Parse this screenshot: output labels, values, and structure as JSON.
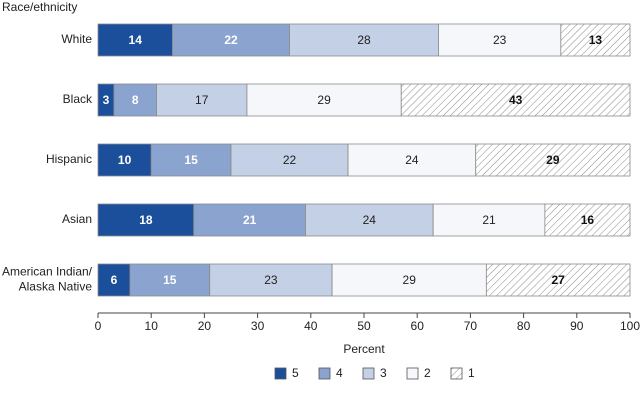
{
  "chart_data": {
    "type": "stacked-bar-horizontal",
    "y_label": "Race/ethnicity",
    "x_label": "Percent",
    "categories": [
      "White",
      "Black",
      "Hispanic",
      "Asian",
      "American Indian/\nAlaska Native"
    ],
    "series": [
      {
        "name": "5",
        "color": "#1b4f9c",
        "label_color": "#ffffff",
        "label_weight": "bold",
        "values": [
          14,
          3,
          10,
          18,
          6
        ]
      },
      {
        "name": "4",
        "color": "#8aa4cf",
        "label_color": "#ffffff",
        "label_weight": "bold",
        "values": [
          22,
          8,
          15,
          21,
          15
        ]
      },
      {
        "name": "3",
        "color": "#c4d0e5",
        "label_color": "#222222",
        "label_weight": "normal",
        "values": [
          28,
          17,
          22,
          24,
          23
        ]
      },
      {
        "name": "2",
        "color": "#f5f7fb",
        "label_color": "#222222",
        "label_weight": "normal",
        "values": [
          23,
          29,
          24,
          21,
          29
        ]
      },
      {
        "name": "1",
        "color": "#ffffff",
        "pattern": "hatch",
        "label_color": "#111111",
        "label_weight": "bold",
        "values": [
          13,
          43,
          29,
          16,
          27
        ]
      }
    ],
    "xlim": [
      0,
      100
    ],
    "xticks": [
      0,
      10,
      20,
      30,
      40,
      50,
      60,
      70,
      80,
      90,
      100
    ],
    "grid": false
  }
}
